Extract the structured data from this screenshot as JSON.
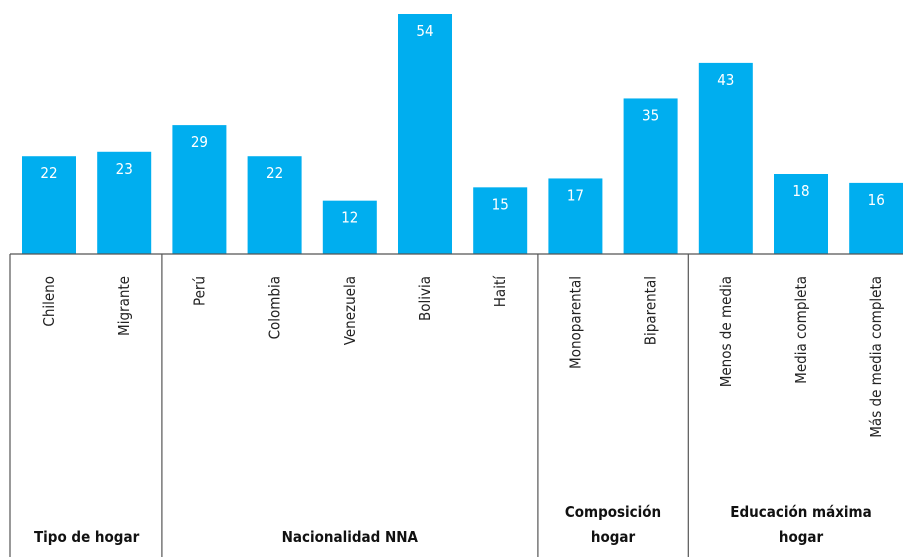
{
  "chart_data": {
    "type": "bar",
    "categories": [
      "Chileno",
      "Migrante",
      "Perú",
      "Colombia",
      "Venezuela",
      "Bolivia",
      "Haití",
      "Monoparental",
      "Biparental",
      "Menos de media",
      "Media completa",
      "Más de media completa"
    ],
    "values": [
      22,
      23,
      29,
      22,
      12,
      54,
      15,
      17,
      35,
      43,
      18,
      16
    ],
    "groups": [
      {
        "label": "Tipo de hogar",
        "lines": [
          "Tipo de hogar"
        ],
        "start": 0,
        "end": 1
      },
      {
        "label": "Nacionalidad NNA",
        "lines": [
          "Nacionalidad NNA"
        ],
        "start": 2,
        "end": 6
      },
      {
        "label": "Composición hogar",
        "lines": [
          "Composición",
          "hogar"
        ],
        "start": 7,
        "end": 8
      },
      {
        "label": "Educación máxima hogar",
        "lines": [
          "Educación máxima",
          "hogar"
        ],
        "start": 9,
        "end": 11
      }
    ],
    "title": "",
    "xlabel": "",
    "ylabel": "",
    "ylim": [
      0,
      56
    ],
    "bar_color": "#00aeef",
    "grid": false,
    "legend": "none"
  }
}
